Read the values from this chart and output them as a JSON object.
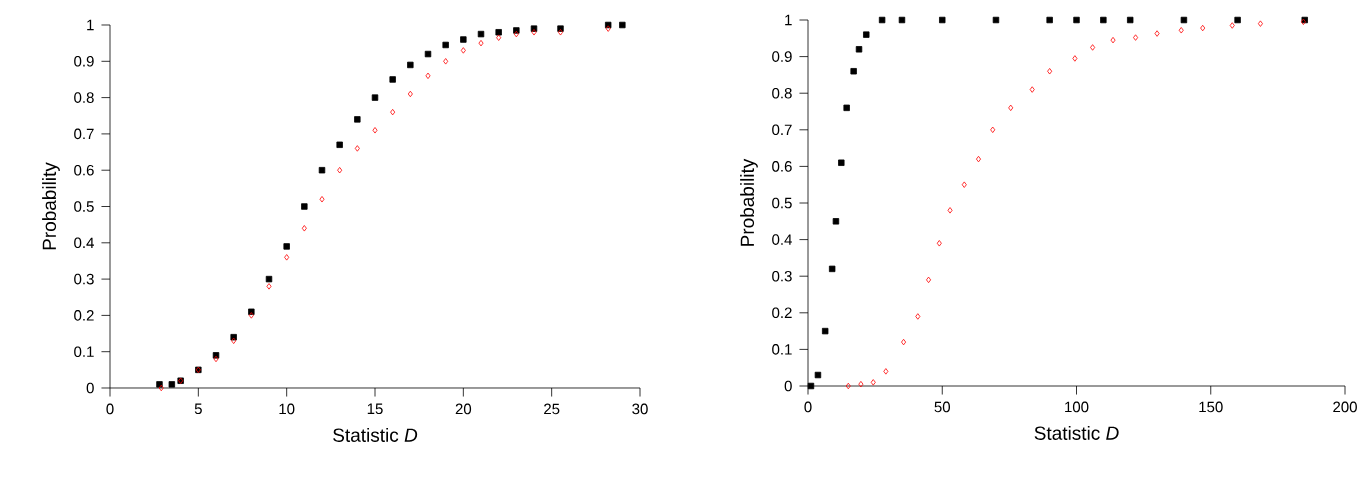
{
  "chart_data": [
    {
      "type": "scatter",
      "xlabel": "Statistic *D*",
      "ylabel": "Probability",
      "xlim": [
        0,
        30
      ],
      "ylim": [
        0,
        1
      ],
      "xticks": [
        0,
        5,
        10,
        15,
        20,
        25,
        30
      ],
      "yticks": [
        0,
        0.1,
        0.2,
        0.3,
        0.4,
        0.5,
        0.6,
        0.7,
        0.8,
        0.9,
        1
      ],
      "grid": false,
      "legend": false,
      "series": [
        {
          "color": "#000000",
          "marker": "square",
          "x": [
            2.8,
            3.5,
            4,
            5,
            6,
            7,
            8,
            9,
            10,
            11,
            12,
            13,
            14,
            15,
            16,
            17,
            18,
            19,
            20,
            21,
            22,
            23,
            24,
            25.5,
            28.2,
            29
          ],
          "values": [
            0.01,
            0.01,
            0.02,
            0.05,
            0.09,
            0.14,
            0.21,
            0.3,
            0.39,
            0.5,
            0.6,
            0.67,
            0.74,
            0.8,
            0.85,
            0.89,
            0.92,
            0.945,
            0.96,
            0.975,
            0.98,
            0.985,
            0.99,
            0.99,
            1,
            1
          ]
        },
        {
          "color": "#ff0000",
          "marker": "diamond",
          "x": [
            2.9,
            4,
            5,
            6,
            7,
            8,
            9,
            10,
            11,
            12,
            13,
            14,
            15,
            16,
            17,
            18,
            19,
            20,
            21,
            22,
            23,
            24,
            25.5,
            28.2
          ],
          "values": [
            0,
            0.02,
            0.05,
            0.08,
            0.13,
            0.2,
            0.28,
            0.36,
            0.44,
            0.52,
            0.6,
            0.66,
            0.71,
            0.76,
            0.81,
            0.86,
            0.9,
            0.93,
            0.95,
            0.965,
            0.975,
            0.98,
            0.98,
            0.99
          ]
        }
      ]
    },
    {
      "type": "scatter",
      "xlabel": "Statistic *D*",
      "ylabel": "Probability",
      "xlim": [
        0,
        200
      ],
      "ylim": [
        0,
        1
      ],
      "xticks": [
        0,
        50,
        100,
        150,
        200
      ],
      "yticks": [
        0,
        0.1,
        0.2,
        0.3,
        0.4,
        0.5,
        0.6,
        0.7,
        0.8,
        0.9,
        1
      ],
      "grid": false,
      "legend": false,
      "series": [
        {
          "color": "#000000",
          "marker": "square",
          "x": [
            1.1,
            3.7,
            6.4,
            9,
            10.4,
            12.4,
            14.4,
            17,
            19,
            21.7,
            27.6,
            35,
            50,
            70,
            90,
            100,
            110,
            120,
            140,
            160,
            185
          ],
          "values": [
            0,
            0.03,
            0.15,
            0.32,
            0.45,
            0.61,
            0.76,
            0.86,
            0.92,
            0.96,
            1,
            1,
            1,
            1,
            1,
            1,
            1,
            1,
            1,
            1,
            1
          ]
        },
        {
          "color": "#ff0000",
          "marker": "diamond",
          "x": [
            15,
            19.7,
            24.3,
            29,
            35.6,
            40.9,
            44.9,
            48.9,
            52.9,
            58.2,
            63.5,
            68.8,
            75.5,
            83.5,
            90,
            99.4,
            106,
            113.6,
            122,
            130,
            139,
            147,
            158,
            168.5,
            184.5
          ],
          "values": [
            0,
            0.005,
            0.01,
            0.04,
            0.12,
            0.19,
            0.29,
            0.39,
            0.48,
            0.55,
            0.62,
            0.7,
            0.76,
            0.81,
            0.86,
            0.895,
            0.925,
            0.945,
            0.952,
            0.963,
            0.972,
            0.978,
            0.985,
            0.99,
            0.995
          ]
        }
      ]
    }
  ]
}
